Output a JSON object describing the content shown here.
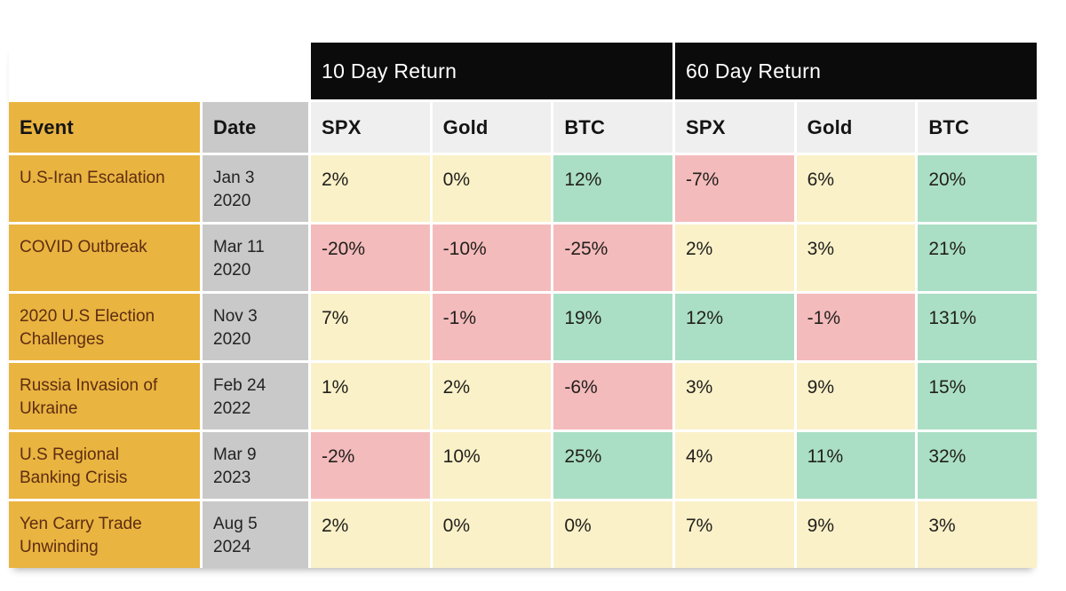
{
  "table": {
    "group_headers": [
      {
        "label": "10 Day Return"
      },
      {
        "label": "60 Day Return"
      }
    ],
    "columns": {
      "event": "Event",
      "date": "Date",
      "metrics": [
        "SPX",
        "Gold",
        "BTC",
        "SPX",
        "Gold",
        "BTC"
      ]
    },
    "rows": [
      {
        "event": "U.S-Iran Escalation",
        "date": "Jan 3\n2020",
        "values": [
          {
            "text": "2%",
            "tone": "neutral"
          },
          {
            "text": "0%",
            "tone": "neutral"
          },
          {
            "text": "12%",
            "tone": "positive"
          },
          {
            "text": "-7%",
            "tone": "negative"
          },
          {
            "text": "6%",
            "tone": "neutral"
          },
          {
            "text": "20%",
            "tone": "positive"
          }
        ]
      },
      {
        "event": "COVID Outbreak",
        "date": "Mar 11\n2020",
        "values": [
          {
            "text": "-20%",
            "tone": "negative"
          },
          {
            "text": "-10%",
            "tone": "negative"
          },
          {
            "text": "-25%",
            "tone": "negative"
          },
          {
            "text": "2%",
            "tone": "neutral"
          },
          {
            "text": "3%",
            "tone": "neutral"
          },
          {
            "text": "21%",
            "tone": "positive"
          }
        ]
      },
      {
        "event": "2020 U.S Election\nChallenges",
        "date": "Nov 3\n2020",
        "values": [
          {
            "text": "7%",
            "tone": "neutral"
          },
          {
            "text": "-1%",
            "tone": "negative"
          },
          {
            "text": "19%",
            "tone": "positive"
          },
          {
            "text": "12%",
            "tone": "positive"
          },
          {
            "text": "-1%",
            "tone": "negative"
          },
          {
            "text": "131%",
            "tone": "positive"
          }
        ]
      },
      {
        "event": "Russia Invasion of\nUkraine",
        "date": "Feb 24\n2022",
        "values": [
          {
            "text": "1%",
            "tone": "neutral"
          },
          {
            "text": "2%",
            "tone": "neutral"
          },
          {
            "text": "-6%",
            "tone": "negative"
          },
          {
            "text": "3%",
            "tone": "neutral"
          },
          {
            "text": "9%",
            "tone": "neutral"
          },
          {
            "text": "15%",
            "tone": "positive"
          }
        ]
      },
      {
        "event": "U.S Regional\nBanking Crisis",
        "date": "Mar 9\n2023",
        "values": [
          {
            "text": "-2%",
            "tone": "negative"
          },
          {
            "text": "10%",
            "tone": "neutral"
          },
          {
            "text": "25%",
            "tone": "positive"
          },
          {
            "text": "4%",
            "tone": "neutral"
          },
          {
            "text": "11%",
            "tone": "positive"
          },
          {
            "text": "32%",
            "tone": "positive"
          }
        ]
      },
      {
        "event": "Yen Carry Trade\nUnwinding",
        "date": "Aug 5\n2024",
        "values": [
          {
            "text": "2%",
            "tone": "neutral"
          },
          {
            "text": "0%",
            "tone": "neutral"
          },
          {
            "text": "0%",
            "tone": "neutral"
          },
          {
            "text": "7%",
            "tone": "neutral"
          },
          {
            "text": "9%",
            "tone": "neutral"
          },
          {
            "text": "3%",
            "tone": "neutral"
          }
        ]
      }
    ],
    "colors": {
      "gold": "#E9B440",
      "gray": "#C9C9C9",
      "subheader_bg": "#EFEFEF",
      "neutral": "#FAF1C9",
      "negative": "#F4BBBC",
      "positive": "#AADFC5",
      "banner_bg": "#0B0B0B",
      "banner_text": "#FFFFFF",
      "event_text": "#5E2D10",
      "header_text": "#141414",
      "value_text": "#22201C"
    }
  },
  "chart_data": {
    "type": "table",
    "column_groups": [
      "10 Day Return",
      "60 Day Return"
    ],
    "columns": [
      "Event",
      "Date",
      "10 Day Return SPX",
      "10 Day Return Gold",
      "10 Day Return BTC",
      "60 Day Return SPX",
      "60 Day Return Gold",
      "60 Day Return BTC"
    ],
    "rows": [
      [
        "U.S-Iran Escalation",
        "Jan 3 2020",
        "2%",
        "0%",
        "12%",
        "-7%",
        "6%",
        "20%"
      ],
      [
        "COVID Outbreak",
        "Mar 11 2020",
        "-20%",
        "-10%",
        "-25%",
        "2%",
        "3%",
        "21%"
      ],
      [
        "2020 U.S Election Challenges",
        "Nov 3 2020",
        "7%",
        "-1%",
        "19%",
        "12%",
        "-1%",
        "131%"
      ],
      [
        "Russia Invasion of Ukraine",
        "Feb 24 2022",
        "1%",
        "2%",
        "-6%",
        "3%",
        "9%",
        "15%"
      ],
      [
        "U.S Regional Banking Crisis",
        "Mar 9 2023",
        "-2%",
        "10%",
        "25%",
        "4%",
        "11%",
        "32%"
      ],
      [
        "Yen Carry Trade Unwinding",
        "Aug 5 2024",
        "2%",
        "0%",
        "0%",
        "7%",
        "9%",
        "3%"
      ]
    ],
    "cell_color_legend": {
      "neutral_cream": "#FAF1C9",
      "negative_pink": "#F4BBBC",
      "positive_green": "#AADFC5"
    }
  }
}
